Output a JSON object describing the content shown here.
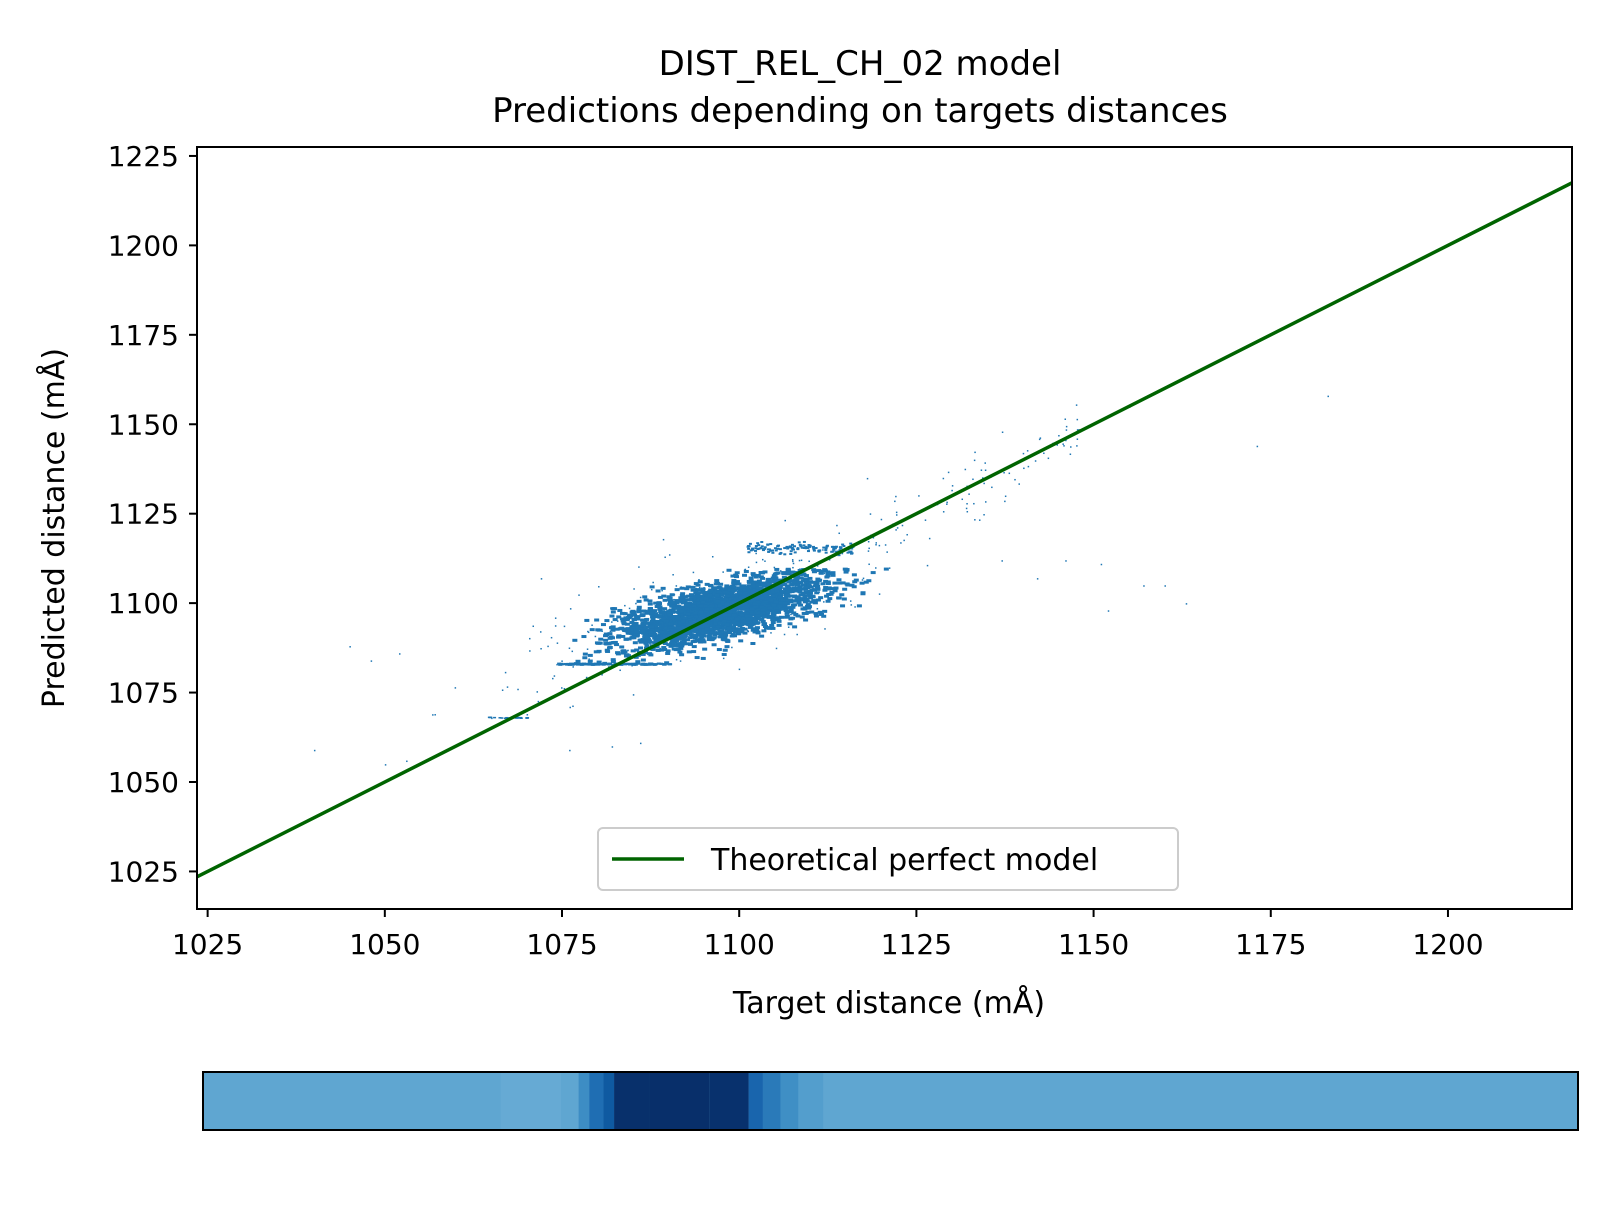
{
  "chart_data": {
    "type": "scatter",
    "title_line1": "DIST_REL_CH_02 model",
    "title_line2": "Predictions depending on targets distances",
    "xlabel": "Target distance (mÅ)",
    "ylabel": "Predicted distance (mÅ)",
    "xlim": [
      1023.5,
      1217.5
    ],
    "ylim": [
      1014.5,
      1227.5
    ],
    "x_ticks": [
      1025,
      1050,
      1075,
      1100,
      1125,
      1150,
      1175,
      1200
    ],
    "y_ticks": [
      1025,
      1050,
      1075,
      1100,
      1125,
      1150,
      1175,
      1200,
      1225
    ],
    "x_tick_labels": [
      "1025",
      "1050",
      "1075",
      "1100",
      "1125",
      "1150",
      "1175",
      "1200"
    ],
    "y_tick_labels": [
      "1025",
      "1050",
      "1075",
      "1100",
      "1125",
      "1150",
      "1175",
      "1200",
      "1225"
    ],
    "series": [
      {
        "name": "Predictions",
        "color": "#1f77b4",
        "cluster": {
          "x_center": 1097,
          "y_center": 1098,
          "x_range": [
            1075,
            1120
          ],
          "y_range": [
            1083,
            1120
          ]
        },
        "outliers": [
          {
            "x": 1040,
            "y": 1059
          },
          {
            "x": 1045,
            "y": 1088
          },
          {
            "x": 1048,
            "y": 1084
          },
          {
            "x": 1050,
            "y": 1055
          },
          {
            "x": 1052,
            "y": 1086
          },
          {
            "x": 1053,
            "y": 1056
          },
          {
            "x": 1057,
            "y": 1069
          },
          {
            "x": 1065,
            "y": 1068
          },
          {
            "x": 1070,
            "y": 1069
          },
          {
            "x": 1072,
            "y": 1107
          },
          {
            "x": 1074,
            "y": 1096
          },
          {
            "x": 1076,
            "y": 1059
          },
          {
            "x": 1082,
            "y": 1060
          },
          {
            "x": 1086,
            "y": 1061
          },
          {
            "x": 1098,
            "y": 1091
          },
          {
            "x": 1112,
            "y": 1093
          },
          {
            "x": 1118,
            "y": 1135
          },
          {
            "x": 1122,
            "y": 1130
          },
          {
            "x": 1128,
            "y": 1128
          },
          {
            "x": 1130,
            "y": 1133
          },
          {
            "x": 1133,
            "y": 1128
          },
          {
            "x": 1137,
            "y": 1112
          },
          {
            "x": 1140,
            "y": 1142
          },
          {
            "x": 1142,
            "y": 1107
          },
          {
            "x": 1145,
            "y": 1147
          },
          {
            "x": 1146,
            "y": 1112
          },
          {
            "x": 1151,
            "y": 1111
          },
          {
            "x": 1152,
            "y": 1098
          },
          {
            "x": 1155,
            "y": 1155
          },
          {
            "x": 1157,
            "y": 1105
          },
          {
            "x": 1160,
            "y": 1105
          },
          {
            "x": 1163,
            "y": 1100
          },
          {
            "x": 1173,
            "y": 1144
          },
          {
            "x": 1183,
            "y": 1158
          }
        ]
      },
      {
        "name": "Theoretical perfect model",
        "color": "#006400",
        "x": [
          1023.5,
          1217.5
        ],
        "y": [
          1023.5,
          1217.5
        ]
      }
    ],
    "legend": {
      "label": "Theoretical perfect model",
      "placement": "lower-center"
    },
    "density_strip": {
      "colormap": "Blues",
      "background_color": "#5fa6d1",
      "bands": [
        {
          "x0": 1065.5,
          "x1": 1074,
          "color": "#66aad4"
        },
        {
          "x0": 1076.5,
          "x1": 1078,
          "color": "#3d8dc4"
        },
        {
          "x0": 1078,
          "x1": 1080,
          "color": "#1f6eb3"
        },
        {
          "x0": 1080,
          "x1": 1081.5,
          "color": "#0f5aa1"
        },
        {
          "x0": 1081.5,
          "x1": 1086.5,
          "color": "#08306b"
        },
        {
          "x0": 1086.5,
          "x1": 1095,
          "color": "#082f6a"
        },
        {
          "x0": 1095,
          "x1": 1100.5,
          "color": "#08316d"
        },
        {
          "x0": 1100.5,
          "x1": 1102.5,
          "color": "#1965ad"
        },
        {
          "x0": 1102.5,
          "x1": 1105,
          "color": "#2a7ab9"
        },
        {
          "x0": 1105,
          "x1": 1107.5,
          "color": "#3f8fc5"
        },
        {
          "x0": 1107.5,
          "x1": 1111,
          "color": "#539ecd"
        }
      ]
    }
  }
}
